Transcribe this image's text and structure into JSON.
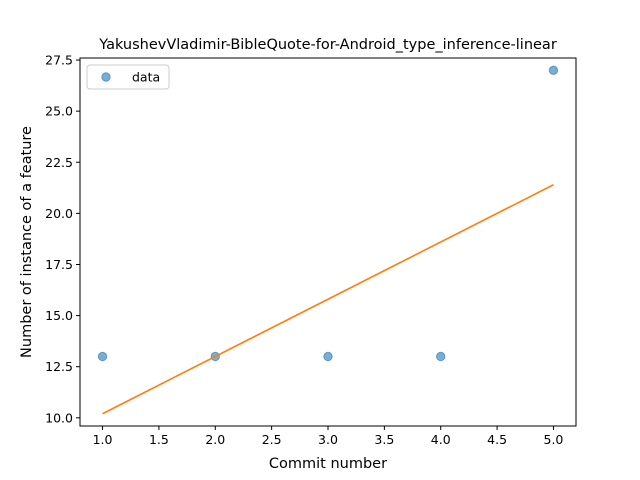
{
  "chart_data": {
    "type": "scatter",
    "title": "YakushevVladimir-BibleQuote-for-Android_type_inference-linear",
    "xlabel": "Commit number",
    "ylabel": "Number of instance of a feature",
    "xlim": [
      0.8,
      5.2
    ],
    "ylim": [
      9.6,
      27.6
    ],
    "xticks": [
      "1.0",
      "1.5",
      "2.0",
      "2.5",
      "3.0",
      "3.5",
      "4.0",
      "4.5",
      "5.0"
    ],
    "yticks": [
      "10.0",
      "12.5",
      "15.0",
      "17.5",
      "20.0",
      "22.5",
      "25.0",
      "27.5"
    ],
    "grid": false,
    "legend_position": "top-left",
    "series": [
      {
        "name": "data",
        "kind": "scatter",
        "color": "#1f77b4",
        "x": [
          1,
          2,
          3,
          4,
          5
        ],
        "y": [
          13,
          13,
          13,
          13,
          27
        ]
      },
      {
        "kind": "line",
        "color": "#ff7f0e",
        "x": [
          1,
          5
        ],
        "y": [
          10.2,
          21.4
        ]
      }
    ]
  }
}
